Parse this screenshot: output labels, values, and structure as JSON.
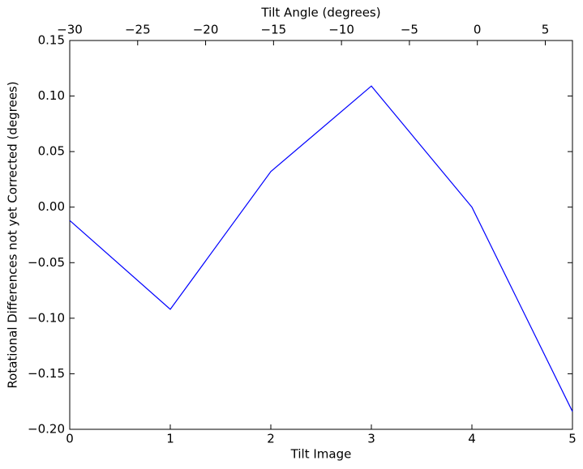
{
  "chart_data": {
    "type": "line",
    "xlabel": "Tilt Image",
    "ylabel": "Rotational Differences not yet Corrected (degrees)",
    "x2label": "Tilt Angle (degrees)",
    "x": [
      0,
      1,
      2,
      3,
      4,
      5
    ],
    "series": [
      {
        "color": "#0000ff",
        "values": [
          -0.012,
          -0.092,
          0.032,
          0.109,
          0.0,
          -0.184
        ]
      }
    ],
    "xlim": [
      0,
      5
    ],
    "xticks": [
      0,
      1,
      2,
      3,
      4,
      5
    ],
    "ylim": [
      -0.2,
      0.15
    ],
    "yticks": [
      {
        "value": -0.2,
        "label": "−0.20"
      },
      {
        "value": -0.15,
        "label": "−0.15"
      },
      {
        "value": -0.1,
        "label": "−0.10"
      },
      {
        "value": -0.05,
        "label": "−0.05"
      },
      {
        "value": 0,
        "label": "0.00"
      },
      0.05,
      {
        "value": 0.1,
        "label": "0.10"
      },
      0.15
    ],
    "x2lim": [
      -30,
      7
    ],
    "x2ticks": [
      {
        "value": -30,
        "label": "−30"
      },
      {
        "value": -25,
        "label": "−25"
      },
      {
        "value": -20,
        "label": "−20"
      },
      {
        "value": -15,
        "label": "−15"
      },
      {
        "value": -10,
        "label": "−10"
      },
      {
        "value": -5,
        "label": "−5"
      },
      0,
      5
    ],
    "grid": false
  }
}
